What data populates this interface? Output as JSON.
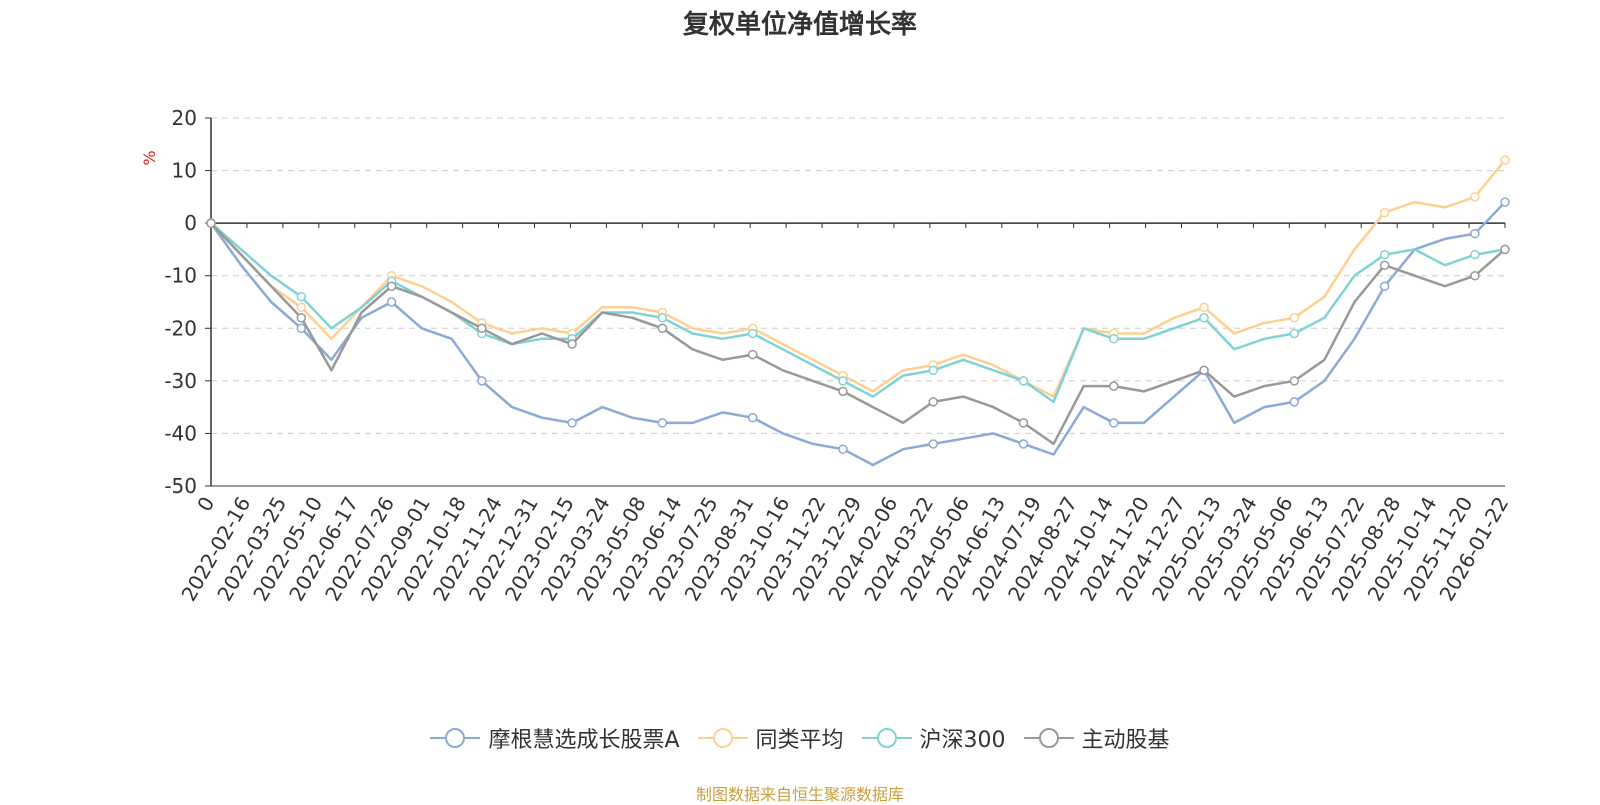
{
  "chart_data": {
    "type": "line",
    "title": "复权单位净值增长率",
    "ylabel": "%",
    "ylim": [
      -50,
      20
    ],
    "yticks": [
      -50,
      -40,
      -30,
      -20,
      -10,
      0,
      10,
      20
    ],
    "grid": true,
    "legend_position": "bottom",
    "x_start_label": "0",
    "xticks": [
      "2022-02-16",
      "2022-03-25",
      "2022-05-10",
      "2022-06-17",
      "2022-07-26",
      "2022-09-01",
      "2022-10-18",
      "2022-11-24",
      "2022-12-31",
      "2023-02-15",
      "2023-03-24",
      "2023-05-08",
      "2023-06-14",
      "2023-07-25",
      "2023-08-31",
      "2023-10-16",
      "2023-11-22",
      "2023-12-29",
      "2024-02-06",
      "2024-03-22",
      "2024-05-06",
      "2024-06-13",
      "2024-07-19",
      "2024-08-27",
      "2024-10-14",
      "2024-11-20",
      "2024-12-27",
      "2025-02-13",
      "2025-03-24",
      "2025-05-06",
      "2025-06-13",
      "2025-07-22",
      "2025-08-28",
      "2025-10-14",
      "2025-11-20",
      "2026-01-22"
    ],
    "series": [
      {
        "name": "摩根慧选成长股票A",
        "color": "#8aaad8",
        "values": [
          0,
          -8,
          -15,
          -20,
          -26,
          -18,
          -15,
          -20,
          -22,
          -30,
          -35,
          -37,
          -38,
          -35,
          -37,
          -38,
          -38,
          -36,
          -37,
          -40,
          -42,
          -43,
          -46,
          -43,
          -42,
          -41,
          -40,
          -42,
          -44,
          -35,
          -38,
          -38,
          -33,
          -28,
          -38,
          -35,
          -34,
          -30,
          -22,
          -12,
          -5,
          -3,
          -2,
          4
        ]
      },
      {
        "name": "同类平均",
        "color": "#fdd08f",
        "values": [
          0,
          -6,
          -12,
          -16,
          -22,
          -16,
          -10,
          -12,
          -15,
          -19,
          -21,
          -20,
          -21,
          -16,
          -16,
          -17,
          -20,
          -21,
          -20,
          -23,
          -26,
          -29,
          -32,
          -28,
          -27,
          -25,
          -27,
          -30,
          -33,
          -20,
          -21,
          -21,
          -18,
          -16,
          -21,
          -19,
          -18,
          -14,
          -5,
          2,
          4,
          3,
          5,
          12
        ]
      },
      {
        "name": "沪深300",
        "color": "#7fd3d6",
        "values": [
          0,
          -5,
          -10,
          -14,
          -20,
          -16,
          -11,
          -14,
          -17,
          -21,
          -23,
          -22,
          -22,
          -17,
          -17,
          -18,
          -21,
          -22,
          -21,
          -24,
          -27,
          -30,
          -33,
          -29,
          -28,
          -26,
          -28,
          -30,
          -34,
          -20,
          -22,
          -22,
          -20,
          -18,
          -24,
          -22,
          -21,
          -18,
          -10,
          -6,
          -5,
          -8,
          -6,
          -5
        ]
      },
      {
        "name": "主动股基",
        "color": "#999999",
        "values": [
          0,
          -6,
          -12,
          -18,
          -28,
          -17,
          -12,
          -14,
          -17,
          -20,
          -23,
          -21,
          -23,
          -17,
          -18,
          -20,
          -24,
          -26,
          -25,
          -28,
          -30,
          -32,
          -35,
          -38,
          -34,
          -33,
          -35,
          -38,
          -42,
          -31,
          -31,
          -32,
          -30,
          -28,
          -33,
          -31,
          -30,
          -26,
          -15,
          -8,
          -10,
          -12,
          -10,
          -5
        ]
      }
    ]
  },
  "legend": {
    "items": [
      "摩根慧选成长股票A",
      "同类平均",
      "沪深300",
      "主动股基"
    ]
  },
  "source": "制图数据来自恒生聚源数据库",
  "colors": {
    "title": "#333333",
    "axis": "#333333",
    "grid": "#cccccc",
    "ylabel": "#e02020",
    "source": "#c8a040"
  }
}
